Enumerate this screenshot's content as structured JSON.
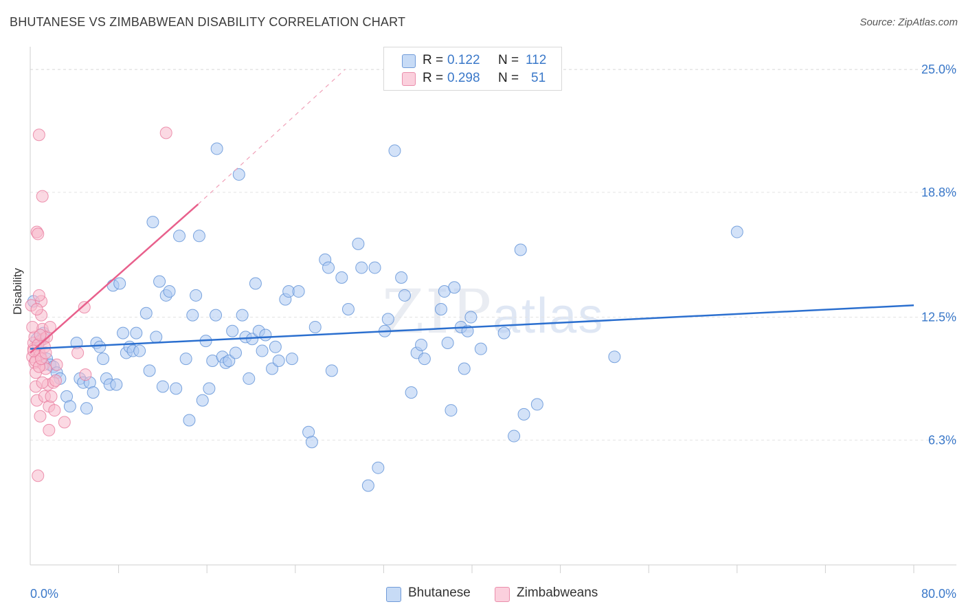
{
  "header": {
    "title": "BHUTANESE VS ZIMBABWEAN DISABILITY CORRELATION CHART",
    "source": "Source: ZipAtlas.com"
  },
  "watermark": {
    "main": "ZIP",
    "sub": "atlas"
  },
  "legend": {
    "rows": [
      {
        "r_label": "R = ",
        "r_value": "0.122",
        "n_label": "N = ",
        "n_value": "112",
        "color": "#aecbf2"
      },
      {
        "r_label": "R = ",
        "r_value": "0.298",
        "n_label": "N = ",
        "n_value": "51",
        "color": "#f8b9cc"
      }
    ]
  },
  "bottom_legend": {
    "items": [
      "Bhutanese",
      "Zimbabweans"
    ]
  },
  "chart_data": {
    "type": "scatter",
    "title": "BHUTANESE VS ZIMBABWEAN DISABILITY CORRELATION CHART",
    "xlabel": "",
    "ylabel": "Disability",
    "xlim": [
      0,
      80
    ],
    "ylim": [
      0,
      25.8
    ],
    "x_tick_labels": [
      "0.0%",
      "80.0%"
    ],
    "y_ticks": [
      6.3,
      12.5,
      18.8,
      25.0
    ],
    "y_tick_labels": [
      "6.3%",
      "12.5%",
      "18.8%",
      "25.0%"
    ],
    "grid": "horizontal dashed",
    "legend_position": "top-center",
    "series": [
      {
        "name": "Bhutanese",
        "color": "#aecbf2",
        "edge": "#5b8fd6",
        "trend": {
          "x": [
            0,
            80
          ],
          "y": [
            10.9,
            13.1
          ],
          "color": "#2b6fcf"
        },
        "points": [
          [
            0.3,
            13.3
          ],
          [
            0.6,
            11.4
          ],
          [
            0.9,
            11.3
          ],
          [
            1.2,
            11.7
          ],
          [
            1.5,
            10.4
          ],
          [
            1.8,
            10.1
          ],
          [
            2.1,
            10.0
          ],
          [
            2.4,
            9.7
          ],
          [
            2.7,
            9.4
          ],
          [
            3.3,
            8.5
          ],
          [
            3.6,
            8.0
          ],
          [
            4.2,
            11.2
          ],
          [
            4.5,
            9.4
          ],
          [
            4.8,
            9.2
          ],
          [
            5.1,
            7.9
          ],
          [
            5.4,
            9.2
          ],
          [
            5.7,
            8.7
          ],
          [
            6.0,
            11.2
          ],
          [
            6.3,
            11.0
          ],
          [
            6.6,
            10.4
          ],
          [
            6.9,
            9.4
          ],
          [
            7.2,
            9.1
          ],
          [
            7.5,
            14.1
          ],
          [
            7.8,
            9.1
          ],
          [
            8.1,
            14.2
          ],
          [
            8.4,
            11.7
          ],
          [
            8.7,
            10.7
          ],
          [
            9.0,
            11.0
          ],
          [
            9.3,
            10.8
          ],
          [
            9.6,
            11.7
          ],
          [
            9.9,
            10.8
          ],
          [
            10.5,
            12.7
          ],
          [
            10.8,
            9.8
          ],
          [
            11.1,
            17.3
          ],
          [
            11.4,
            11.5
          ],
          [
            11.7,
            14.3
          ],
          [
            12.0,
            9.0
          ],
          [
            12.3,
            13.6
          ],
          [
            12.6,
            13.8
          ],
          [
            13.2,
            8.9
          ],
          [
            13.5,
            16.6
          ],
          [
            14.1,
            10.4
          ],
          [
            14.4,
            7.3
          ],
          [
            14.7,
            12.6
          ],
          [
            15.0,
            13.6
          ],
          [
            15.3,
            16.6
          ],
          [
            15.6,
            8.3
          ],
          [
            15.9,
            11.3
          ],
          [
            16.2,
            8.9
          ],
          [
            16.5,
            10.3
          ],
          [
            16.8,
            12.6
          ],
          [
            16.9,
            21.0
          ],
          [
            17.4,
            10.5
          ],
          [
            17.7,
            10.2
          ],
          [
            18.0,
            10.3
          ],
          [
            18.3,
            11.8
          ],
          [
            18.6,
            10.7
          ],
          [
            18.9,
            19.7
          ],
          [
            19.2,
            12.6
          ],
          [
            19.5,
            11.5
          ],
          [
            19.8,
            9.4
          ],
          [
            20.1,
            11.4
          ],
          [
            20.4,
            14.2
          ],
          [
            20.7,
            11.8
          ],
          [
            21.0,
            10.8
          ],
          [
            21.3,
            11.6
          ],
          [
            21.9,
            9.9
          ],
          [
            22.2,
            11.0
          ],
          [
            22.5,
            10.3
          ],
          [
            23.1,
            13.4
          ],
          [
            23.4,
            13.8
          ],
          [
            23.7,
            10.4
          ],
          [
            24.3,
            13.8
          ],
          [
            25.2,
            6.7
          ],
          [
            25.5,
            6.2
          ],
          [
            25.8,
            12.0
          ],
          [
            26.7,
            15.4
          ],
          [
            27.0,
            15.0
          ],
          [
            27.3,
            9.8
          ],
          [
            28.2,
            14.5
          ],
          [
            28.8,
            12.9
          ],
          [
            29.7,
            16.2
          ],
          [
            30.0,
            15.0
          ],
          [
            30.6,
            4.0
          ],
          [
            31.2,
            15.0
          ],
          [
            31.5,
            4.9
          ],
          [
            32.1,
            11.8
          ],
          [
            32.4,
            12.4
          ],
          [
            33.0,
            20.9
          ],
          [
            33.6,
            14.5
          ],
          [
            33.9,
            13.6
          ],
          [
            34.5,
            8.7
          ],
          [
            35.0,
            10.7
          ],
          [
            35.4,
            11.1
          ],
          [
            35.7,
            10.4
          ],
          [
            37.5,
            13.8
          ],
          [
            37.8,
            11.2
          ],
          [
            38.1,
            7.8
          ],
          [
            38.4,
            14.0
          ],
          [
            39.0,
            12.0
          ],
          [
            39.3,
            9.9
          ],
          [
            39.6,
            11.8
          ],
          [
            39.9,
            12.5
          ],
          [
            40.8,
            10.9
          ],
          [
            42.9,
            11.7
          ],
          [
            43.8,
            6.5
          ],
          [
            44.4,
            15.9
          ],
          [
            44.7,
            7.6
          ],
          [
            45.9,
            8.1
          ],
          [
            52.9,
            10.5
          ],
          [
            64.0,
            16.8
          ],
          [
            37.2,
            12.9
          ]
        ]
      },
      {
        "name": "Zimbabweans",
        "color": "#f8b9cc",
        "edge": "#e9799c",
        "trend": {
          "x": [
            0,
            15.2
          ],
          "y": [
            10.7,
            18.2
          ],
          "dashed_to": [
            28.5,
            25.0
          ],
          "color": "#e8608c"
        },
        "points": [
          [
            0.1,
            13.1
          ],
          [
            0.2,
            10.5
          ],
          [
            0.3,
            10.9
          ],
          [
            0.4,
            10.2
          ],
          [
            0.5,
            9.7
          ],
          [
            0.5,
            9.0
          ],
          [
            0.6,
            8.3
          ],
          [
            0.6,
            16.8
          ],
          [
            0.7,
            16.7
          ],
          [
            0.7,
            4.5
          ],
          [
            0.8,
            21.7
          ],
          [
            0.8,
            10.8
          ],
          [
            0.9,
            10.6
          ],
          [
            0.9,
            7.5
          ],
          [
            1.0,
            13.3
          ],
          [
            1.0,
            12.6
          ],
          [
            1.1,
            18.6
          ],
          [
            1.1,
            11.9
          ],
          [
            1.2,
            11.4
          ],
          [
            1.2,
            10.1
          ],
          [
            1.3,
            8.5
          ],
          [
            1.4,
            9.9
          ],
          [
            1.5,
            11.5
          ],
          [
            1.6,
            9.1
          ],
          [
            1.7,
            8.0
          ],
          [
            1.7,
            6.8
          ],
          [
            1.8,
            12.0
          ],
          [
            1.9,
            8.5
          ],
          [
            2.1,
            9.2
          ],
          [
            2.2,
            7.8
          ],
          [
            2.3,
            9.3
          ],
          [
            2.4,
            10.1
          ],
          [
            3.1,
            7.2
          ],
          [
            4.3,
            10.7
          ],
          [
            4.9,
            13.0
          ],
          [
            5.0,
            9.6
          ],
          [
            12.3,
            21.8
          ],
          [
            0.3,
            11.2
          ],
          [
            0.4,
            11.5
          ],
          [
            0.5,
            10.3
          ],
          [
            0.6,
            12.9
          ],
          [
            0.7,
            11.1
          ],
          [
            0.8,
            10.0
          ],
          [
            0.9,
            11.6
          ],
          [
            1.0,
            10.4
          ],
          [
            1.1,
            9.2
          ],
          [
            1.3,
            11.0
          ],
          [
            1.4,
            10.7
          ],
          [
            0.2,
            12.0
          ],
          [
            0.3,
            10.8
          ],
          [
            0.8,
            13.6
          ]
        ]
      }
    ]
  }
}
